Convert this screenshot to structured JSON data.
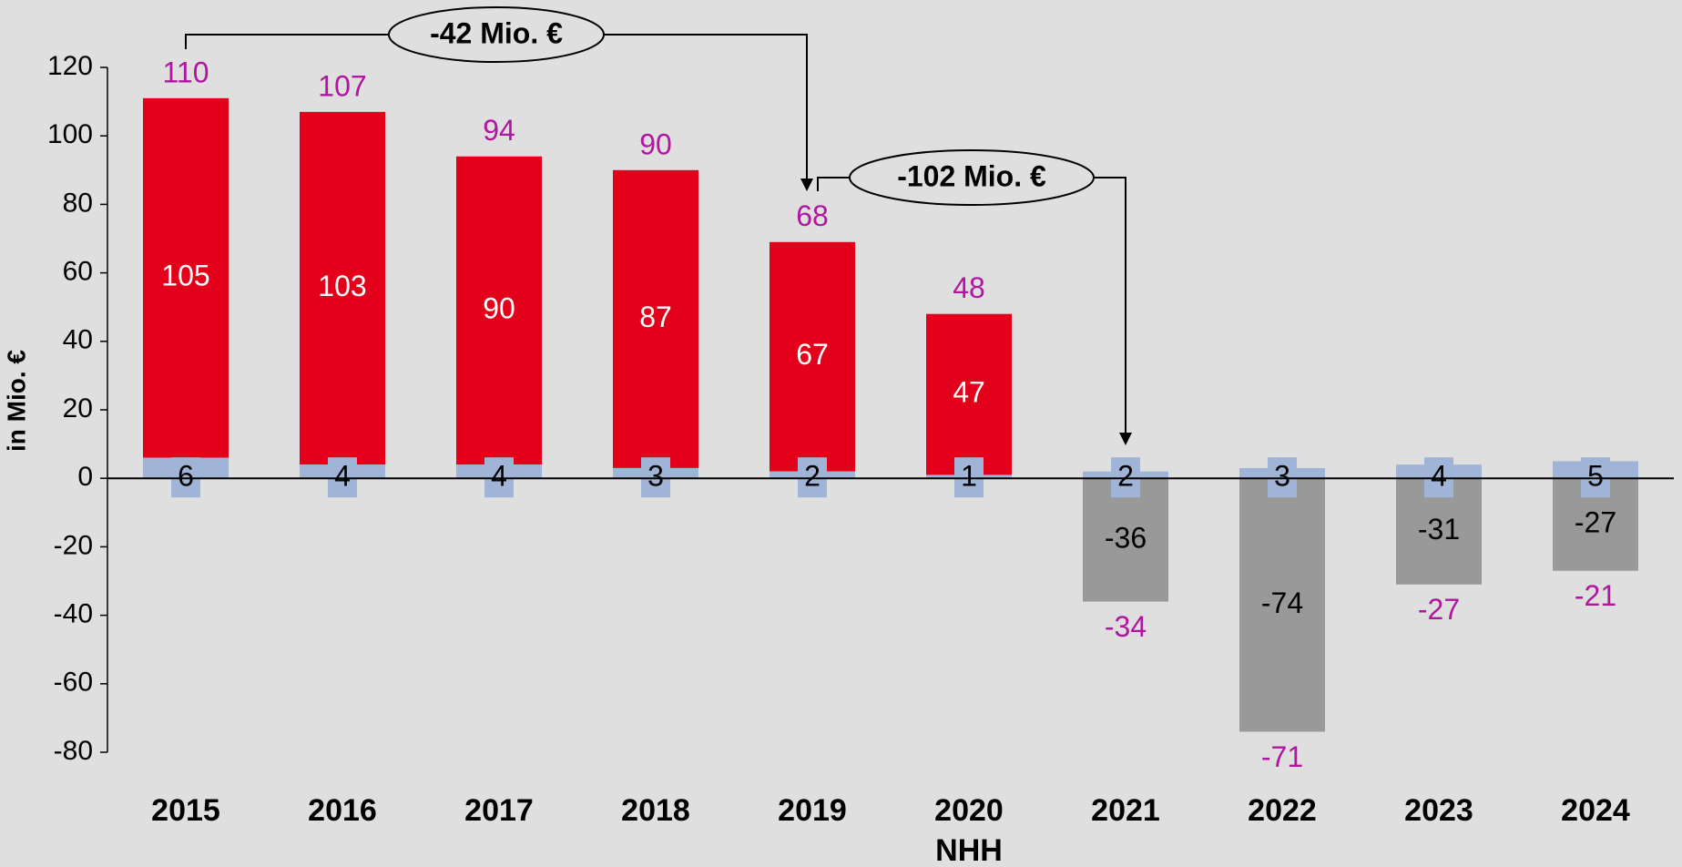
{
  "chart_data": {
    "type": "stacked_bar",
    "y_axis_label": "in Mio. €",
    "categories": [
      "2015",
      "2016",
      "2017",
      "2018",
      "2019",
      "2020",
      "2021",
      "2022",
      "2023",
      "2024"
    ],
    "category_note": {
      "category": "2020",
      "text": "NHH"
    },
    "series": [
      {
        "color": "#9fb4d6",
        "values": [
          6,
          4,
          4,
          3,
          2,
          1,
          2,
          3,
          4,
          5
        ]
      },
      {
        "color": "#e2001a",
        "negative_color": "#999999",
        "values": [
          105,
          103,
          90,
          87,
          67,
          47,
          -36,
          -74,
          -31,
          -27
        ]
      }
    ],
    "totals": [
      110,
      107,
      94,
      90,
      68,
      48,
      -34,
      -71,
      -27,
      -21
    ],
    "totals_color": "#b0169e",
    "annotations": [
      {
        "text": "-42 Mio. €",
        "from": "2015",
        "to": "2019"
      },
      {
        "text": "-102 Mio. €",
        "from": "2019",
        "to": "2021"
      }
    ],
    "ylim": [
      -80,
      120
    ],
    "yticks": [
      -80,
      -60,
      -40,
      -20,
      0,
      20,
      40,
      60,
      80,
      100,
      120
    ]
  }
}
